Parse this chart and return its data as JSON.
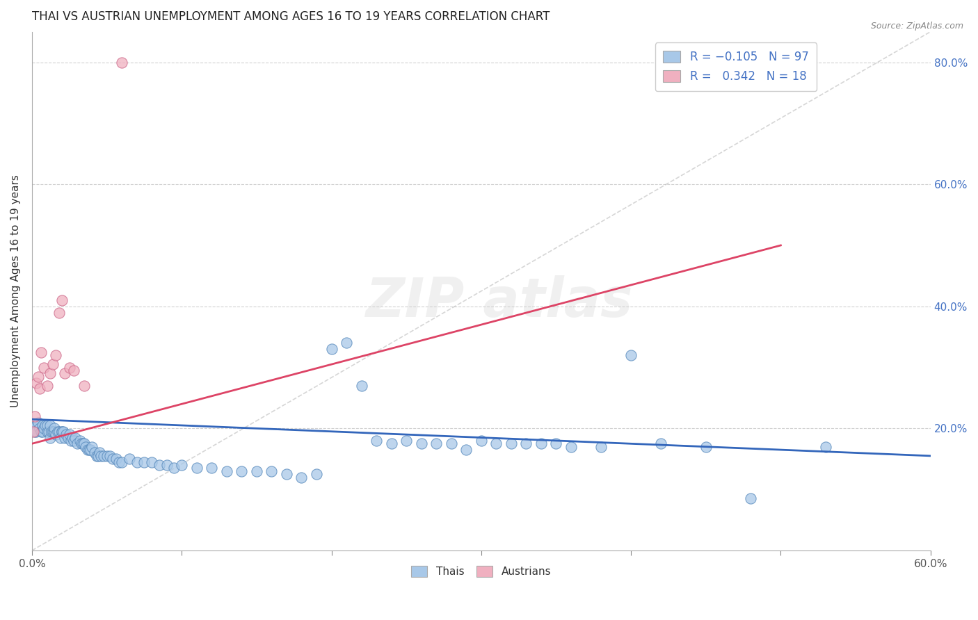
{
  "title": "THAI VS AUSTRIAN UNEMPLOYMENT AMONG AGES 16 TO 19 YEARS CORRELATION CHART",
  "source": "Source: ZipAtlas.com",
  "ylabel_label": "Unemployment Among Ages 16 to 19 years",
  "x_min": 0.0,
  "x_max": 0.6,
  "y_min": 0.0,
  "y_max": 0.85,
  "ylabel_right_ticks": [
    0.2,
    0.4,
    0.6,
    0.8
  ],
  "ylabel_right_labels": [
    "20.0%",
    "40.0%",
    "60.0%",
    "80.0%"
  ],
  "thai_color": "#a8c8e8",
  "austrian_color": "#f0b0c0",
  "thai_edge_color": "#5588bb",
  "austrian_edge_color": "#cc6688",
  "trend_thai_color": "#3366bb",
  "trend_austrian_color": "#dd4466",
  "ref_line_color": "#bbbbbb",
  "grid_color": "#cccccc",
  "background_color": "#ffffff",
  "title_color": "#222222",
  "axis_label_color": "#4472c4",
  "source_color": "#888888",
  "dot_size": 120,
  "thai_scatter_x": [
    0.001,
    0.002,
    0.003,
    0.003,
    0.004,
    0.005,
    0.006,
    0.007,
    0.007,
    0.008,
    0.009,
    0.01,
    0.01,
    0.011,
    0.012,
    0.012,
    0.013,
    0.014,
    0.015,
    0.015,
    0.016,
    0.017,
    0.018,
    0.019,
    0.02,
    0.02,
    0.021,
    0.022,
    0.023,
    0.024,
    0.025,
    0.026,
    0.027,
    0.028,
    0.029,
    0.03,
    0.032,
    0.033,
    0.034,
    0.035,
    0.036,
    0.037,
    0.038,
    0.039,
    0.04,
    0.042,
    0.043,
    0.044,
    0.045,
    0.046,
    0.048,
    0.05,
    0.052,
    0.054,
    0.056,
    0.058,
    0.06,
    0.065,
    0.07,
    0.075,
    0.08,
    0.085,
    0.09,
    0.095,
    0.1,
    0.11,
    0.12,
    0.13,
    0.14,
    0.15,
    0.16,
    0.17,
    0.18,
    0.19,
    0.2,
    0.21,
    0.22,
    0.23,
    0.24,
    0.25,
    0.26,
    0.27,
    0.28,
    0.29,
    0.3,
    0.31,
    0.32,
    0.33,
    0.34,
    0.35,
    0.36,
    0.38,
    0.4,
    0.42,
    0.45,
    0.48,
    0.53
  ],
  "thai_scatter_y": [
    0.2,
    0.195,
    0.205,
    0.195,
    0.21,
    0.2,
    0.195,
    0.205,
    0.195,
    0.2,
    0.205,
    0.195,
    0.205,
    0.195,
    0.205,
    0.185,
    0.195,
    0.195,
    0.195,
    0.2,
    0.19,
    0.195,
    0.195,
    0.185,
    0.195,
    0.195,
    0.195,
    0.185,
    0.19,
    0.185,
    0.19,
    0.18,
    0.185,
    0.18,
    0.185,
    0.175,
    0.18,
    0.175,
    0.175,
    0.175,
    0.17,
    0.165,
    0.165,
    0.165,
    0.17,
    0.16,
    0.155,
    0.155,
    0.16,
    0.155,
    0.155,
    0.155,
    0.155,
    0.15,
    0.15,
    0.145,
    0.145,
    0.15,
    0.145,
    0.145,
    0.145,
    0.14,
    0.14,
    0.135,
    0.14,
    0.135,
    0.135,
    0.13,
    0.13,
    0.13,
    0.13,
    0.125,
    0.12,
    0.125,
    0.33,
    0.34,
    0.27,
    0.18,
    0.175,
    0.18,
    0.175,
    0.175,
    0.175,
    0.165,
    0.18,
    0.175,
    0.175,
    0.175,
    0.175,
    0.175,
    0.17,
    0.17,
    0.32,
    0.175,
    0.17,
    0.085,
    0.17
  ],
  "austrian_scatter_x": [
    0.001,
    0.002,
    0.003,
    0.004,
    0.005,
    0.006,
    0.008,
    0.01,
    0.012,
    0.014,
    0.016,
    0.018,
    0.02,
    0.022,
    0.025,
    0.028,
    0.035,
    0.06
  ],
  "austrian_scatter_y": [
    0.195,
    0.22,
    0.275,
    0.285,
    0.265,
    0.325,
    0.3,
    0.27,
    0.29,
    0.305,
    0.32,
    0.39,
    0.41,
    0.29,
    0.3,
    0.295,
    0.27,
    0.8
  ],
  "thai_trend": [
    0.0,
    0.6,
    0.215,
    0.155
  ],
  "austrian_trend": [
    0.0,
    0.5,
    0.175,
    0.5
  ],
  "ref_line": [
    0.0,
    0.6,
    0.0,
    0.85
  ]
}
